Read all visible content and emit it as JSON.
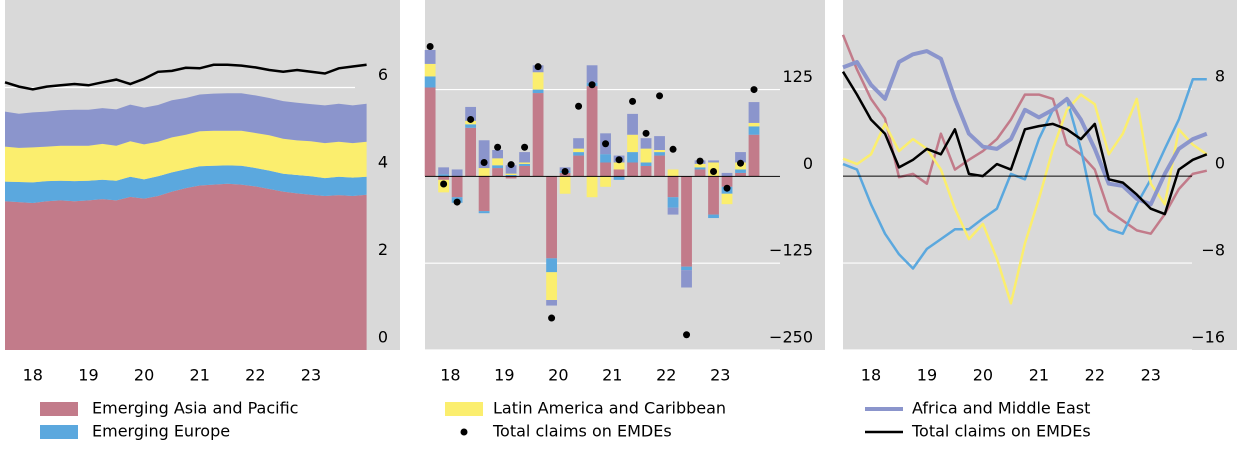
{
  "chart_data": [
    {
      "type": "area",
      "x": [
        2018.0,
        2018.25,
        2018.5,
        2018.75,
        2019.0,
        2019.25,
        2019.5,
        2019.75,
        2020.0,
        2020.25,
        2020.5,
        2020.75,
        2021.0,
        2021.25,
        2021.5,
        2021.75,
        2022.0,
        2022.25,
        2022.5,
        2022.75,
        2023.0,
        2023.25,
        2023.5,
        2023.75,
        2024.0,
        2024.25,
        2024.5
      ],
      "xlim": [
        2018.0,
        2025.1
      ],
      "xticks": [
        {
          "value": 2018.5,
          "label": "18"
        },
        {
          "value": 2019.5,
          "label": "19"
        },
        {
          "value": 2020.5,
          "label": "20"
        },
        {
          "value": 2021.5,
          "label": "21"
        },
        {
          "value": 2022.5,
          "label": "22"
        },
        {
          "value": 2023.5,
          "label": "23"
        }
      ],
      "ylim": [
        0,
        8
      ],
      "yticks": [
        0,
        2,
        4,
        6
      ],
      "grid": true,
      "series": [
        {
          "name": "Emerging Asia and Pacific",
          "color": "#c27b8a",
          "values": [
            3.4,
            3.38,
            3.36,
            3.4,
            3.42,
            3.4,
            3.42,
            3.45,
            3.42,
            3.5,
            3.46,
            3.52,
            3.62,
            3.7,
            3.76,
            3.78,
            3.8,
            3.78,
            3.74,
            3.68,
            3.62,
            3.58,
            3.55,
            3.52,
            3.54,
            3.52,
            3.55
          ]
        },
        {
          "name": "Emerging Europe",
          "color": "#5ba8de",
          "values": [
            0.45,
            0.46,
            0.47,
            0.46,
            0.45,
            0.46,
            0.45,
            0.44,
            0.45,
            0.46,
            0.44,
            0.45,
            0.44,
            0.43,
            0.44,
            0.43,
            0.42,
            0.43,
            0.42,
            0.42,
            0.41,
            0.42,
            0.42,
            0.41,
            0.42,
            0.42,
            0.41
          ]
        },
        {
          "name": "Latin America and Caribbean",
          "color": "#fbee6e",
          "values": [
            0.8,
            0.78,
            0.8,
            0.79,
            0.8,
            0.81,
            0.8,
            0.82,
            0.8,
            0.81,
            0.8,
            0.79,
            0.8,
            0.79,
            0.8,
            0.8,
            0.79,
            0.8,
            0.8,
            0.81,
            0.8,
            0.79,
            0.8,
            0.8,
            0.8,
            0.79,
            0.8
          ]
        },
        {
          "name": "Africa and Middle East",
          "color": "#8b95cc",
          "values": [
            0.8,
            0.78,
            0.8,
            0.8,
            0.81,
            0.82,
            0.82,
            0.82,
            0.83,
            0.84,
            0.84,
            0.84,
            0.85,
            0.84,
            0.84,
            0.85,
            0.86,
            0.86,
            0.86,
            0.85,
            0.86,
            0.86,
            0.85,
            0.86,
            0.87,
            0.86,
            0.87
          ]
        },
        {
          "name": "Total claims on EMDEs",
          "color": "#000000",
          "type": "line",
          "values": [
            6.12,
            6.02,
            5.96,
            6.02,
            6.05,
            6.08,
            6.05,
            6.12,
            6.18,
            6.08,
            6.2,
            6.36,
            6.38,
            6.45,
            6.44,
            6.52,
            6.52,
            6.5,
            6.46,
            6.4,
            6.36,
            6.4,
            6.36,
            6.32,
            6.44,
            6.48,
            6.52
          ]
        }
      ]
    },
    {
      "type": "bar",
      "stacked": true,
      "zero_line": true,
      "x": [
        2018.125,
        2018.375,
        2018.625,
        2018.875,
        2019.125,
        2019.375,
        2019.625,
        2019.875,
        2020.125,
        2020.375,
        2020.625,
        2020.875,
        2021.125,
        2021.375,
        2021.625,
        2021.875,
        2022.125,
        2022.375,
        2022.625,
        2022.875,
        2023.125,
        2023.375,
        2023.625,
        2023.875,
        2024.125
      ],
      "xlim": [
        2018.03,
        2025.44
      ],
      "xticks": [
        {
          "value": 2018.5,
          "label": "18"
        },
        {
          "value": 2019.5,
          "label": "19"
        },
        {
          "value": 2020.5,
          "label": "20"
        },
        {
          "value": 2021.5,
          "label": "21"
        },
        {
          "value": 2022.5,
          "label": "22"
        },
        {
          "value": 2023.5,
          "label": "23"
        }
      ],
      "ylim": [
        -250,
        254
      ],
      "yticks": [
        {
          "value": -250,
          "label": "−250"
        },
        {
          "value": -125,
          "label": "−125"
        },
        0,
        125
      ],
      "grid": true,
      "series": [
        {
          "name": "Emerging Asia and Pacific",
          "color": "#c27b8a",
          "values": [
            128,
            -5,
            -30,
            70,
            -50,
            12,
            -3,
            15,
            120,
            -118,
            5,
            30,
            130,
            20,
            10,
            20,
            15,
            30,
            -30,
            -130,
            10,
            -55,
            -15,
            5,
            60
          ]
        },
        {
          "name": "Emerging Europe",
          "color": "#5ba8de",
          "values": [
            16,
            3,
            -8,
            5,
            -3,
            4,
            2,
            3,
            5,
            -20,
            3,
            5,
            5,
            12,
            -5,
            15,
            5,
            5,
            -15,
            -5,
            3,
            -5,
            -10,
            5,
            12
          ]
        },
        {
          "name": "Latin America and Caribbean",
          "color": "#fbee6e",
          "values": [
            18,
            -18,
            0,
            5,
            12,
            10,
            2,
            2,
            25,
            -40,
            -25,
            5,
            -30,
            -15,
            10,
            25,
            20,
            3,
            10,
            0,
            5,
            20,
            -15,
            10,
            5
          ]
        },
        {
          "name": "Africa and Middle East",
          "color": "#8b95cc",
          "values": [
            20,
            10,
            10,
            20,
            40,
            12,
            12,
            15,
            10,
            -8,
            5,
            15,
            25,
            30,
            10,
            30,
            15,
            20,
            -10,
            -25,
            5,
            3,
            5,
            15,
            30
          ]
        },
        {
          "name": "Total claims on EMDEs",
          "color": "#000000",
          "type": "scatter",
          "values": [
            187,
            -11,
            -37,
            82,
            20,
            42,
            17,
            42,
            158,
            -204,
            7,
            101,
            132,
            47,
            24,
            108,
            62,
            116,
            39,
            -228,
            22,
            7,
            -17,
            19,
            125
          ]
        }
      ]
    },
    {
      "type": "line",
      "zero_line": true,
      "x": [
        2018.0,
        2018.25,
        2018.5,
        2018.75,
        2019.0,
        2019.25,
        2019.5,
        2019.75,
        2020.0,
        2020.25,
        2020.5,
        2020.75,
        2021.0,
        2021.25,
        2021.5,
        2021.75,
        2022.0,
        2022.25,
        2022.5,
        2022.75,
        2023.0,
        2023.25,
        2023.5,
        2023.75,
        2024.0,
        2024.25,
        2024.5
      ],
      "xlim": [
        2018.0,
        2025.04
      ],
      "xticks": [
        {
          "value": 2018.5,
          "label": "18"
        },
        {
          "value": 2019.5,
          "label": "19"
        },
        {
          "value": 2020.5,
          "label": "20"
        },
        {
          "value": 2021.5,
          "label": "21"
        },
        {
          "value": 2022.5,
          "label": "22"
        },
        {
          "value": 2023.5,
          "label": "23"
        }
      ],
      "ylim": [
        -16,
        16.2
      ],
      "yticks": [
        {
          "value": -16,
          "label": "−16"
        },
        {
          "value": -8,
          "label": "−8"
        },
        0,
        8
      ],
      "grid": true,
      "series": [
        {
          "name": "Emerging Asia and Pacific",
          "color": "#c27b8a",
          "values": [
            13.0,
            9.8,
            7.1,
            5.3,
            -0.1,
            0.2,
            -0.7,
            3.9,
            0.6,
            1.5,
            2.3,
            3.4,
            5.2,
            7.5,
            7.5,
            7.1,
            2.9,
            2.0,
            0.6,
            -3.2,
            -4.1,
            -5.0,
            -5.3,
            -3.5,
            -1.2,
            0.2,
            0.5
          ]
        },
        {
          "name": "Emerging Europe",
          "color": "#5ba8de",
          "values": [
            1.1,
            0.6,
            -2.6,
            -5.3,
            -7.2,
            -8.5,
            -6.7,
            -5.8,
            -4.9,
            -4.9,
            -3.9,
            -3.0,
            0.2,
            -0.3,
            3.4,
            6.1,
            7.1,
            2.5,
            -3.5,
            -4.9,
            -5.3,
            -2.6,
            -0.3,
            2.5,
            5.2,
            8.9,
            8.9
          ]
        },
        {
          "name": "Latin America and Caribbean",
          "color": "#fbee6e",
          "values": [
            1.6,
            1.1,
            2.0,
            4.8,
            2.3,
            3.4,
            2.5,
            0.6,
            -3.0,
            -5.8,
            -4.4,
            -7.6,
            -11.7,
            -6.2,
            -2.1,
            2.5,
            6.1,
            7.5,
            6.6,
            2.0,
            3.9,
            7.1,
            -0.7,
            -2.6,
            4.3,
            2.9,
            2.0
          ]
        },
        {
          "name": "Africa and Middle East",
          "color": "#8b95cc",
          "values": [
            10.0,
            10.5,
            8.4,
            7.1,
            10.5,
            11.2,
            11.5,
            10.8,
            7.1,
            3.9,
            2.7,
            2.5,
            3.4,
            6.1,
            5.4,
            6.1,
            7.1,
            5.2,
            2.5,
            -0.7,
            -0.9,
            -2.1,
            -2.6,
            0.2,
            2.5,
            3.4,
            3.9
          ]
        },
        {
          "name": "Total claims on EMDEs",
          "color": "#000000",
          "values": [
            9.6,
            7.5,
            5.2,
            3.9,
            0.8,
            1.5,
            2.5,
            2.0,
            4.3,
            0.2,
            0.0,
            1.1,
            0.6,
            4.3,
            4.6,
            4.8,
            4.3,
            3.4,
            4.8,
            -0.3,
            -0.6,
            -1.7,
            -3.0,
            -3.5,
            0.6,
            1.5,
            2.0
          ]
        }
      ]
    }
  ]
}
